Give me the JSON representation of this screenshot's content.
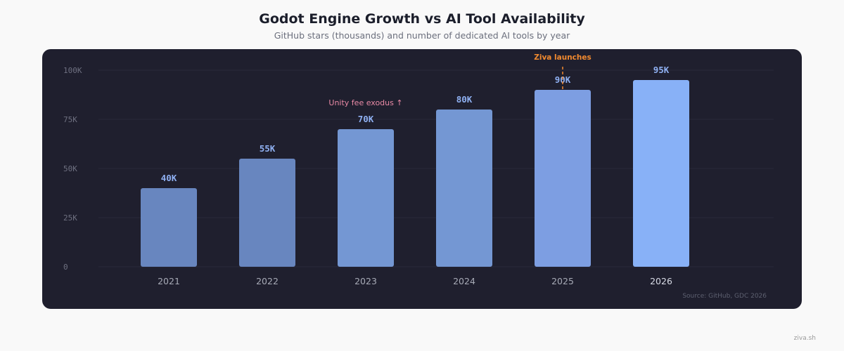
{
  "header": {
    "title": "Godot Engine Growth vs AI Tool Availability",
    "subtitle": "GitHub stars (thousands) and number of dedicated AI tools by year"
  },
  "footer": {
    "source": "Source: GitHub, GDC 2026",
    "brand": "ziva.sh"
  },
  "colors": {
    "panel_bg": "#1f1f2e",
    "bar_colors": [
      "#6886bf",
      "#6886bf",
      "#7497d3",
      "#7497d3",
      "#7d9ee2",
      "#88b1f7"
    ],
    "value_label": "#8fb0f2",
    "annotation_unity": "#e98aa6",
    "annotation_ziva": "#f28a2f",
    "tick": "#6e7080",
    "category": "#a7aab6",
    "category_highlight": "#d8dbe6"
  },
  "chart_data": {
    "type": "bar",
    "categories": [
      "2021",
      "2022",
      "2023",
      "2024",
      "2025",
      "2026"
    ],
    "values": [
      40,
      55,
      70,
      80,
      90,
      95
    ],
    "value_labels": [
      "40K",
      "55K",
      "70K",
      "80K",
      "90K",
      "95K"
    ],
    "yticks": [
      0,
      25,
      50,
      75,
      100
    ],
    "ytick_labels": [
      "0",
      "25K",
      "50K",
      "75K",
      "100K"
    ],
    "ylim": [
      0,
      100
    ],
    "grid": true,
    "annotations": [
      {
        "text": "Unity fee exodus ↑",
        "category": "2023"
      },
      {
        "text": "Ziva launches",
        "category": "2025"
      }
    ]
  }
}
